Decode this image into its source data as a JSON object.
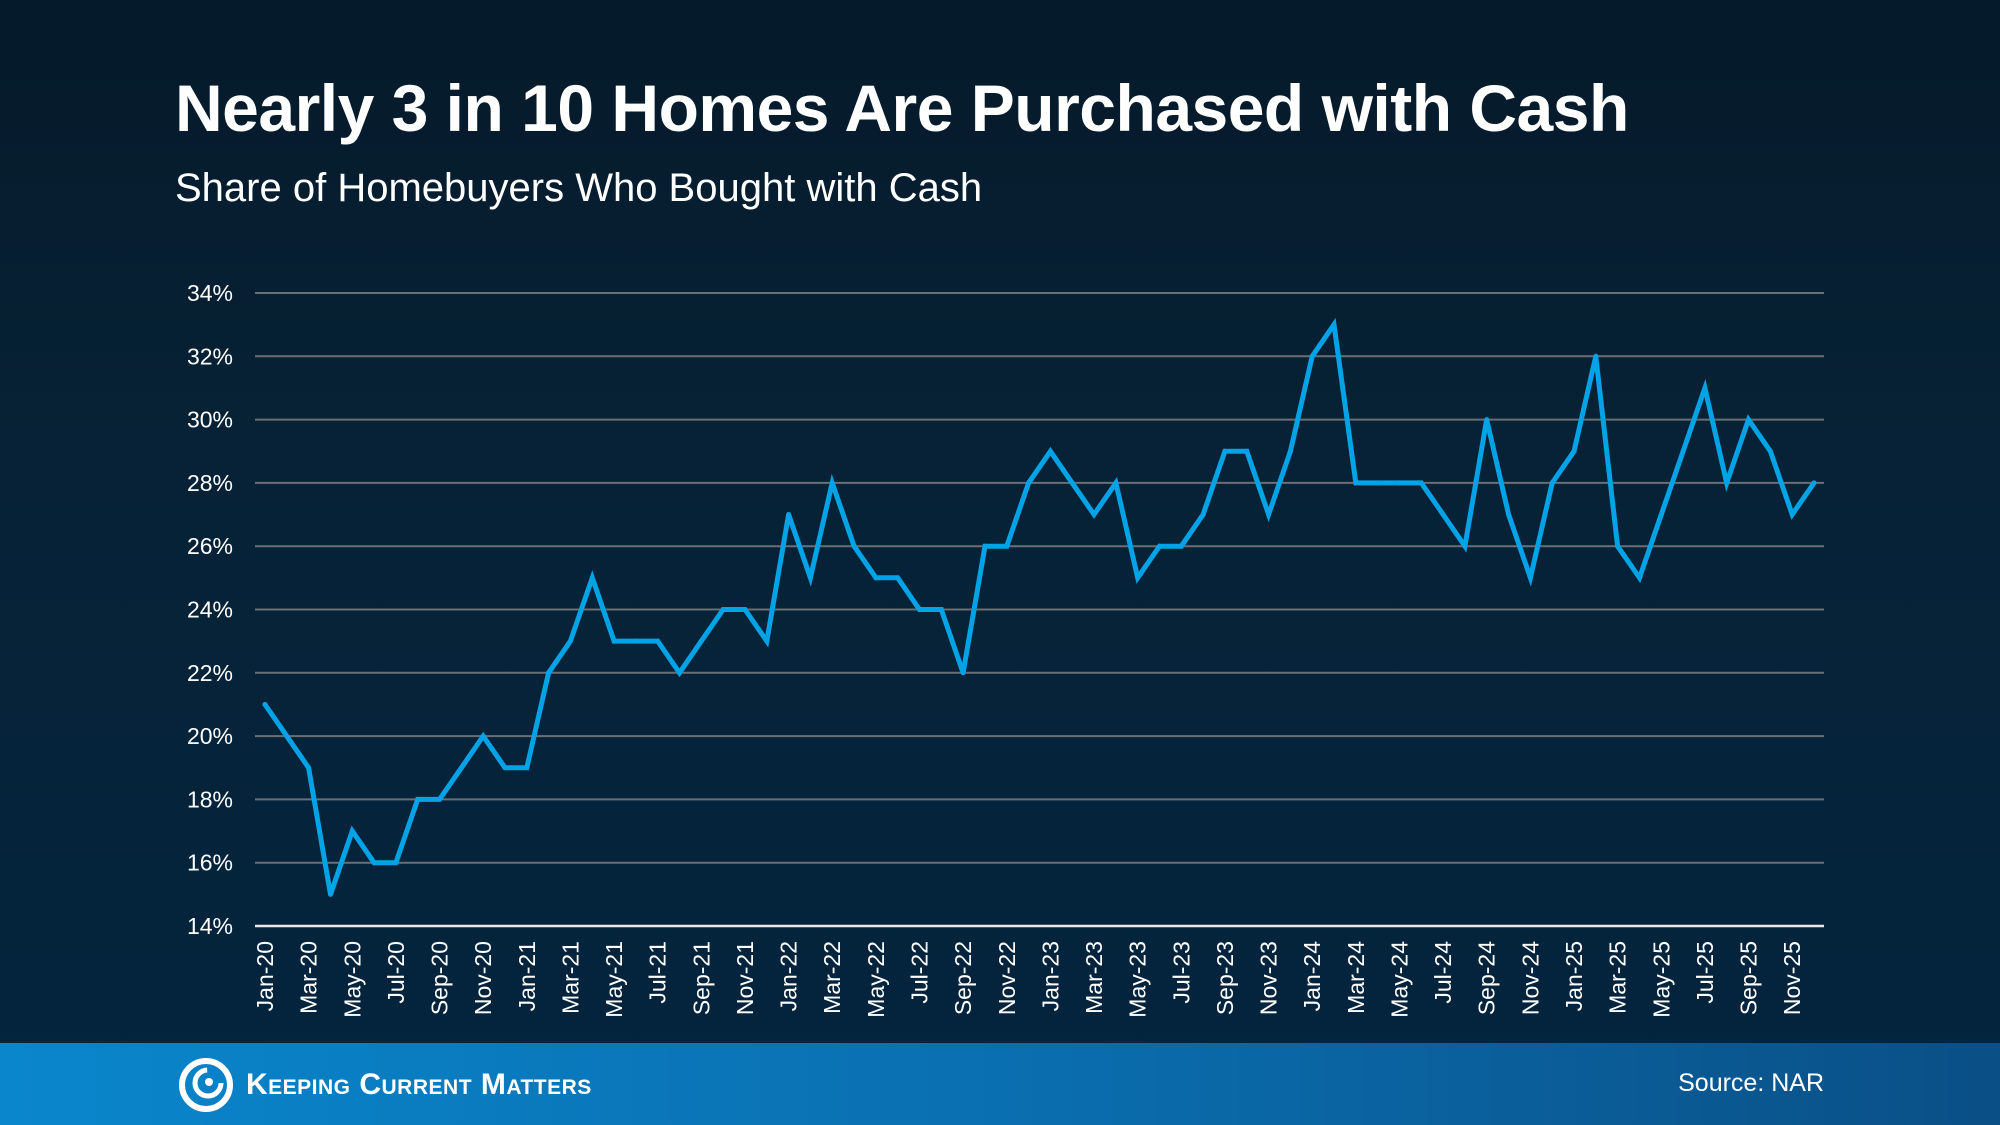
{
  "header": {
    "title": "Nearly 3 in 10 Homes Are Purchased with Cash",
    "subtitle": "Share of Homebuyers Who Bought with Cash"
  },
  "chart_data": {
    "type": "line",
    "title": "Nearly 3 in 10 Homes Are Purchased with Cash",
    "subtitle": "Share of Homebuyers Who Bought with Cash",
    "xlabel": "",
    "ylabel": "",
    "ylim": [
      14,
      34
    ],
    "y_ticks": [
      "14%",
      "16%",
      "18%",
      "20%",
      "22%",
      "24%",
      "26%",
      "28%",
      "30%",
      "32%",
      "34%"
    ],
    "y_tick_values": [
      14,
      16,
      18,
      20,
      22,
      24,
      26,
      28,
      30,
      32,
      34
    ],
    "grid": true,
    "line_color": "#00a3e6",
    "x": [
      "Jan-20",
      "Feb-20",
      "Mar-20",
      "Apr-20",
      "May-20",
      "Jun-20",
      "Jul-20",
      "Aug-20",
      "Sep-20",
      "Oct-20",
      "Nov-20",
      "Dec-20",
      "Jan-21",
      "Feb-21",
      "Mar-21",
      "Apr-21",
      "May-21",
      "Jun-21",
      "Jul-21",
      "Aug-21",
      "Sep-21",
      "Oct-21",
      "Nov-21",
      "Dec-21",
      "Jan-22",
      "Feb-22",
      "Mar-22",
      "Apr-22",
      "May-22",
      "Jun-22",
      "Jul-22",
      "Aug-22",
      "Sep-22",
      "Oct-22",
      "Nov-22",
      "Dec-22",
      "Jan-23",
      "Feb-23",
      "Mar-23",
      "Apr-23",
      "May-23",
      "Jun-23",
      "Jul-23",
      "Aug-23",
      "Sep-23",
      "Oct-23",
      "Nov-23",
      "Dec-23",
      "Jan-24",
      "Feb-24",
      "Mar-24",
      "Apr-24",
      "May-24",
      "Jun-24",
      "Jul-24",
      "Aug-24",
      "Sep-24",
      "Oct-24",
      "Nov-24",
      "Dec-24",
      "Jan-25",
      "Feb-25",
      "Mar-25",
      "Apr-25",
      "May-25",
      "Jun-25",
      "Jul-25",
      "Aug-25",
      "Sep-25",
      "Oct-25",
      "Nov-25",
      "Dec-25"
    ],
    "x_tick_labels": [
      "Jan-20",
      "Mar-20",
      "May-20",
      "Jul-20",
      "Sep-20",
      "Nov-20",
      "Jan-21",
      "Mar-21",
      "May-21",
      "Jul-21",
      "Sep-21",
      "Nov-21",
      "Jan-22",
      "Mar-22",
      "May-22",
      "Jul-22",
      "Sep-22",
      "Nov-22",
      "Jan-23",
      "Mar-23",
      "May-23",
      "Jul-23",
      "Sep-23",
      "Nov-23",
      "Jan-24",
      "Mar-24",
      "May-24",
      "Jul-24",
      "Sep-24",
      "Nov-24",
      "Jan-25",
      "Mar-25",
      "May-25",
      "Jul-25",
      "Sep-25",
      "Nov-25"
    ],
    "values": [
      21,
      20,
      19,
      15,
      17,
      16,
      16,
      18,
      18,
      19,
      20,
      19,
      19,
      22,
      23,
      25,
      23,
      23,
      23,
      22,
      23,
      24,
      24,
      23,
      27,
      25,
      28,
      26,
      25,
      25,
      24,
      24,
      22,
      26,
      26,
      28,
      29,
      28,
      27,
      28,
      25,
      26,
      26,
      27,
      29,
      29,
      27,
      29,
      32,
      33,
      28,
      28,
      28,
      28,
      27,
      26,
      30,
      27,
      25,
      28,
      29,
      32,
      26,
      25,
      27,
      29,
      31,
      28,
      30,
      29,
      27,
      28
    ]
  },
  "footer": {
    "brand": "Keeping Current Matters",
    "source": "Source: NAR",
    "brand_color": "#0a86cc"
  }
}
